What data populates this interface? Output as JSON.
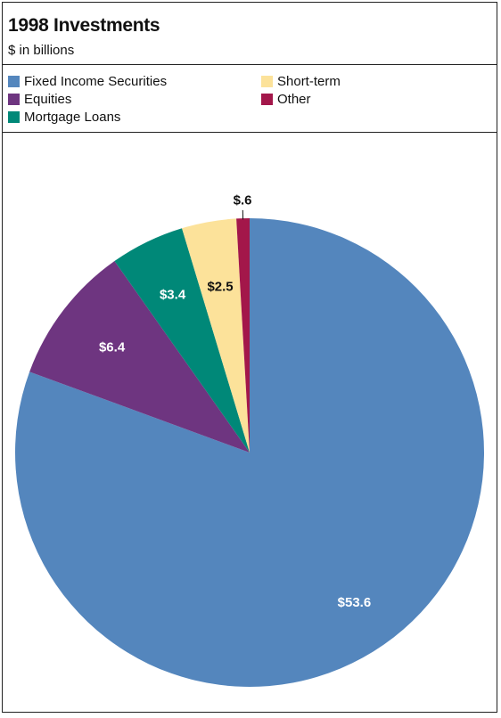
{
  "chart_data": {
    "type": "pie",
    "title": "1998 Investments",
    "subtitle": "$ in billions",
    "categories": [
      "Fixed Income Securities",
      "Equities",
      "Mortgage Loans",
      "Short-term",
      "Other"
    ],
    "values": [
      53.6,
      6.4,
      3.4,
      2.5,
      0.6
    ],
    "data_labels": [
      "$53.6",
      "$6.4",
      "$3.4",
      "$2.5",
      "$.6"
    ],
    "colors": [
      "#5486bd",
      "#6e3580",
      "#008878",
      "#fce29a",
      "#a3174a"
    ],
    "label_colors": [
      "#ffffff",
      "#ffffff",
      "#ffffff",
      "#111111",
      "#111111"
    ],
    "legend_placement": "top",
    "start_angle_degrees": 0,
    "direction": "clockwise"
  }
}
